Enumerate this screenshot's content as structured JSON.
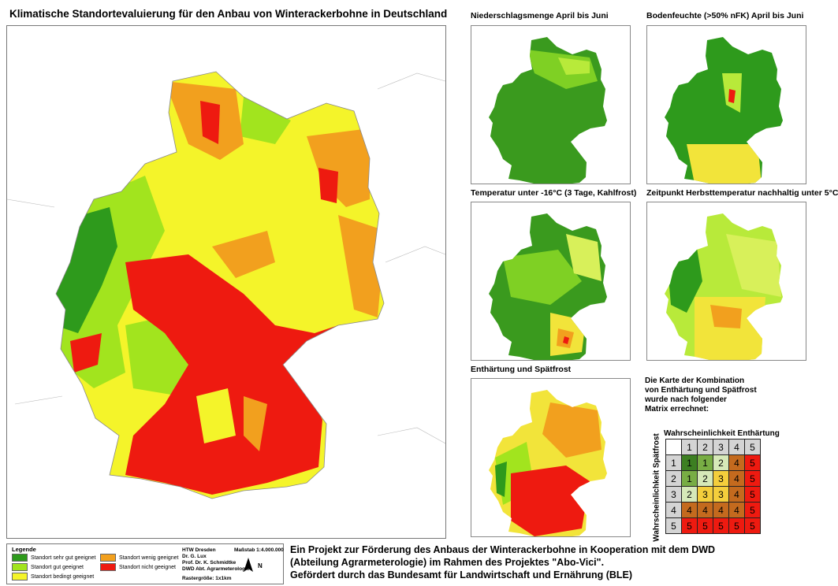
{
  "title": "Klimatische Standortevaluierung für den Anbau von Winterackerbohne in Deutschland",
  "colors": {
    "sehr_gut": "#2e9a1c",
    "gut": "#a2e41e",
    "bedingt": "#f4f42a",
    "wenig": "#f2a01e",
    "nicht": "#ee1a10"
  },
  "panels": [
    {
      "title": "Niederschlagsmenge April bis Juni",
      "scheme": "green"
    },
    {
      "title": "Bodenfeuchte (>50% nFK) April bis Juni",
      "scheme": "soil"
    },
    {
      "title": "Temperatur unter -16°C (3 Tage, Kahlfrost)",
      "scheme": "frost"
    },
    {
      "title": "Zeitpunkt Herbsttemperatur nachhaltig unter 5°C",
      "scheme": "autumn"
    },
    {
      "title": "Enthärtung und Spätfrost",
      "scheme": "mix"
    }
  ],
  "matrix": {
    "description": [
      "Die Karte der Kombination",
      "von Enthärtung und Spätfrost",
      "wurde nach folgender",
      "Matrix errechnet:"
    ],
    "col_title": "Wahrscheinlichkeit Enthärtung",
    "row_title": "Wahrscheinlichkeit Spätfrost",
    "header": [
      "1",
      "2",
      "3",
      "4",
      "5"
    ],
    "rows": [
      {
        "label": "1",
        "cells": [
          "1",
          "1",
          "2",
          "4",
          "5"
        ]
      },
      {
        "label": "2",
        "cells": [
          "1",
          "2",
          "3",
          "4",
          "5"
        ]
      },
      {
        "label": "3",
        "cells": [
          "2",
          "3",
          "3",
          "4",
          "5"
        ]
      },
      {
        "label": "4",
        "cells": [
          "4",
          "4",
          "4",
          "4",
          "5"
        ]
      },
      {
        "label": "5",
        "cells": [
          "5",
          "5",
          "5",
          "5",
          "5"
        ]
      }
    ],
    "cell_colors": [
      [
        "#3d7f22",
        "#78ad44",
        "#d6e9b8",
        "#c46a1e",
        "#ee1a10"
      ],
      [
        "#78ad44",
        "#d6e9b8",
        "#f4ce3c",
        "#c46a1e",
        "#ee1a10"
      ],
      [
        "#d6e9b8",
        "#f4ce3c",
        "#f4ce3c",
        "#c46a1e",
        "#ee1a10"
      ],
      [
        "#c46a1e",
        "#c46a1e",
        "#c46a1e",
        "#c46a1e",
        "#ee1a10"
      ],
      [
        "#ee1a10",
        "#ee1a10",
        "#ee1a10",
        "#ee1a10",
        "#ee1a10"
      ]
    ],
    "header_color": "#d4d4d4"
  },
  "legend": {
    "title": "Legende",
    "items": [
      {
        "label": "Standort sehr gut geeignet",
        "color": "#2e9a1c"
      },
      {
        "label": "Standort gut geeignet",
        "color": "#a2e41e"
      },
      {
        "label": "Standort bedingt geeignet",
        "color": "#f4f42a"
      },
      {
        "label": "Standort wenig geeignet",
        "color": "#f2a01e"
      },
      {
        "label": "Standort nicht geeignet",
        "color": "#ee1a10"
      }
    ]
  },
  "credits": {
    "lines": [
      "HTW Dresden",
      "Dr. G. Lux",
      "Prof. Dr. K. Schmidtke",
      "DWD Abt. Agrarmeterologie"
    ],
    "scale": "Maßstab 1:4.000.000",
    "north": "N",
    "raster": "Rastergröße: 1x1km"
  },
  "footer": [
    "Ein Projekt zur Förderung des Anbaus der Winterackerbohne in Kooperation mit dem DWD",
    "(Abteilung Agrarmeterologie) im Rahmen des Projektes \"Abo-Vici\".",
    "Gefördert durch das Bundesamt für Landwirtschaft und Ernährung (BLE)"
  ]
}
